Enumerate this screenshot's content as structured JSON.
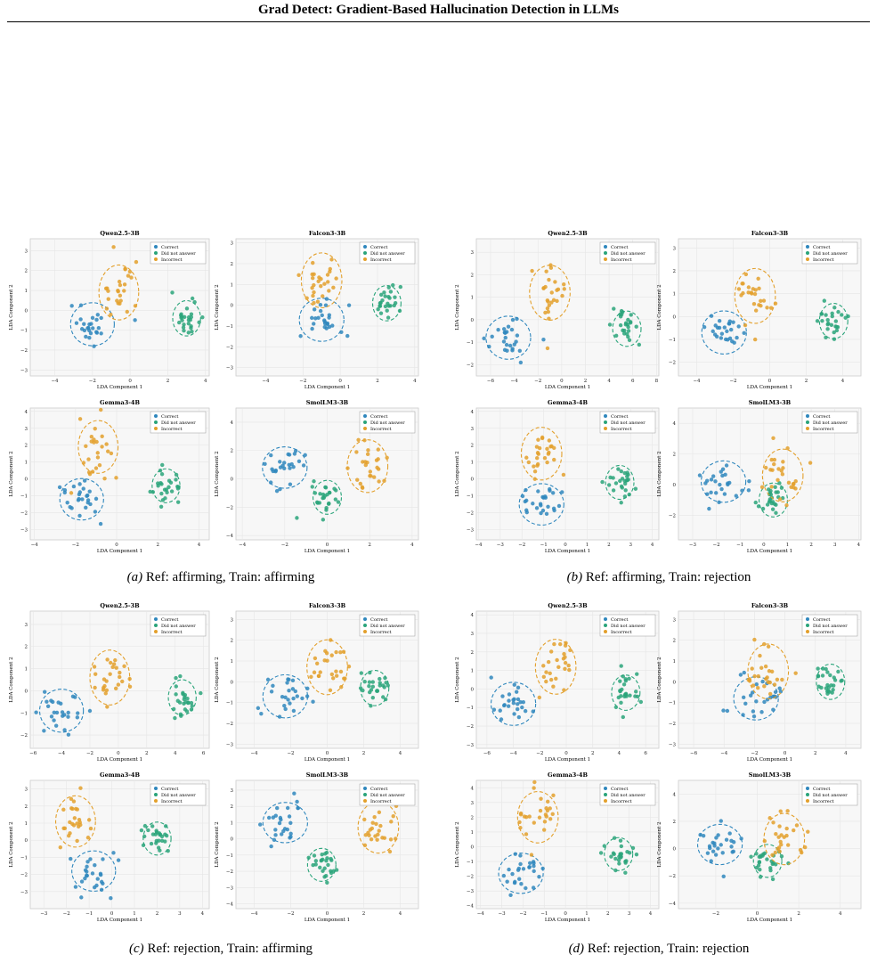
{
  "header": {
    "title": "Grad Detect: Gradient-Based Hallucination Detection in LLMs"
  },
  "legend": [
    "Correct",
    "Did not answer",
    "Incorrect"
  ],
  "colors": {
    "Correct": "#2f87bd",
    "Did not answer": "#2aa47a",
    "Incorrect": "#e3a02c"
  },
  "axis_labels": {
    "x": "LDA Component 1",
    "y": "LDA Component 2"
  },
  "subfigures": [
    {
      "label": "(a)",
      "caption": "Ref: affirming, Train: affirming"
    },
    {
      "label": "(b)",
      "caption": "Ref: affirming, Train: rejection"
    },
    {
      "label": "(c)",
      "caption": "Ref: rejection, Train: affirming"
    },
    {
      "label": "(d)",
      "caption": "Ref: rejection, Train: rejection"
    }
  ],
  "chart_data": [
    {
      "type": "scatter",
      "title": "Qwen2.5-3B",
      "subfigure": "(a)",
      "xticks": [
        -4,
        -2,
        0,
        2,
        4
      ],
      "yticks": [
        -3,
        -2,
        -1,
        0,
        1,
        2,
        3
      ],
      "xlim": [
        -5.3,
        4.2
      ],
      "ylim": [
        -3.3,
        3.6
      ],
      "clusters": {
        "Correct": [
          -2.0,
          -0.7
        ],
        "Did not answer": [
          3.0,
          -0.4
        ],
        "Incorrect": [
          -0.6,
          0.9
        ]
      }
    },
    {
      "type": "scatter",
      "title": "Falcon3-3B",
      "subfigure": "(a)",
      "xticks": [
        -4,
        -2,
        0,
        2,
        4
      ],
      "yticks": [
        -3,
        -2,
        -1,
        0,
        1,
        2,
        3
      ],
      "xlim": [
        -5.6,
        4.2
      ],
      "ylim": [
        -3.4,
        3.2
      ],
      "clusters": {
        "Correct": [
          -1.0,
          -0.7
        ],
        "Did not answer": [
          2.5,
          0.1
        ],
        "Incorrect": [
          -1.0,
          1.2
        ]
      }
    },
    {
      "type": "scatter",
      "title": "Gemma3-4B",
      "subfigure": "(a)",
      "xticks": [
        -4,
        -2,
        0,
        2,
        4
      ],
      "yticks": [
        -3,
        -2,
        -1,
        0,
        1,
        2,
        3,
        4
      ],
      "xlim": [
        -4.2,
        4.5
      ],
      "ylim": [
        -3.6,
        4.2
      ],
      "clusters": {
        "Correct": [
          -1.7,
          -1.2
        ],
        "Did not answer": [
          2.4,
          -0.4
        ],
        "Incorrect": [
          -0.9,
          1.9
        ]
      }
    },
    {
      "type": "scatter",
      "title": "SmolLM3-3B",
      "subfigure": "(a)",
      "xticks": [
        -4,
        -2,
        0,
        2,
        4
      ],
      "yticks": [
        -4,
        -2,
        0,
        2,
        4
      ],
      "xlim": [
        -4.3,
        4.3
      ],
      "ylim": [
        -4.3,
        5.0
      ],
      "clusters": {
        "Correct": [
          -2.0,
          0.8
        ],
        "Did not answer": [
          0.0,
          -1.3
        ],
        "Incorrect": [
          1.9,
          0.9
        ]
      }
    },
    {
      "type": "scatter",
      "title": "Qwen2.5-3B",
      "subfigure": "(b)",
      "xticks": [
        -6,
        -4,
        -2,
        0,
        2,
        4,
        6,
        8
      ],
      "yticks": [
        -2,
        -1,
        0,
        1,
        2,
        3
      ],
      "xlim": [
        -7.2,
        8.2
      ],
      "ylim": [
        -2.5,
        3.6
      ],
      "clusters": {
        "Correct": [
          -4.5,
          -0.8
        ],
        "Did not answer": [
          5.5,
          -0.4
        ],
        "Incorrect": [
          -1.0,
          1.2
        ]
      }
    },
    {
      "type": "scatter",
      "title": "Falcon3-3B",
      "subfigure": "(b)",
      "xticks": [
        -4,
        -2,
        0,
        2,
        4
      ],
      "yticks": [
        -2,
        -1,
        0,
        1,
        2,
        3
      ],
      "xlim": [
        -5.0,
        5.0
      ],
      "ylim": [
        -2.6,
        3.4
      ],
      "clusters": {
        "Correct": [
          -2.5,
          -0.7
        ],
        "Did not answer": [
          3.5,
          -0.2
        ],
        "Incorrect": [
          -0.8,
          0.9
        ]
      }
    },
    {
      "type": "scatter",
      "title": "Gemma3-4B",
      "subfigure": "(b)",
      "xticks": [
        -4,
        -3,
        -2,
        -1,
        0,
        1,
        2,
        3,
        4
      ],
      "yticks": [
        -3,
        -2,
        -1,
        0,
        1,
        2,
        3,
        4
      ],
      "xlim": [
        -4.1,
        4.3
      ],
      "ylim": [
        -3.6,
        4.2
      ],
      "clusters": {
        "Correct": [
          -1.1,
          -1.5
        ],
        "Did not answer": [
          2.5,
          -0.2
        ],
        "Incorrect": [
          -1.1,
          1.5
        ]
      }
    },
    {
      "type": "scatter",
      "title": "SmolLM3-3B",
      "subfigure": "(b)",
      "xticks": [
        -3,
        -2,
        -1,
        0,
        1,
        2,
        3,
        4
      ],
      "yticks": [
        -2,
        0,
        2,
        4
      ],
      "xlim": [
        -3.6,
        4.1
      ],
      "ylim": [
        -3.6,
        5.0
      ],
      "clusters": {
        "Correct": [
          -1.7,
          0.2
        ],
        "Did not answer": [
          0.4,
          -1.0
        ],
        "Incorrect": [
          0.8,
          0.6
        ]
      }
    },
    {
      "type": "scatter",
      "title": "Qwen2.5-3B",
      "subfigure": "(c)",
      "xticks": [
        -6,
        -4,
        -2,
        0,
        2,
        4,
        6
      ],
      "yticks": [
        -2,
        -1,
        0,
        1,
        2,
        3
      ],
      "xlim": [
        -6.2,
        6.4
      ],
      "ylim": [
        -2.6,
        3.6
      ],
      "clusters": {
        "Correct": [
          -4.0,
          -0.9
        ],
        "Did not answer": [
          4.5,
          -0.3
        ],
        "Incorrect": [
          -0.6,
          0.6
        ]
      }
    },
    {
      "type": "scatter",
      "title": "Falcon3-3B",
      "subfigure": "(c)",
      "xticks": [
        -4,
        -2,
        0,
        2,
        4
      ],
      "yticks": [
        -3,
        -2,
        -1,
        0,
        1,
        2,
        3
      ],
      "xlim": [
        -5.0,
        5.0
      ],
      "ylim": [
        -3.2,
        3.4
      ],
      "clusters": {
        "Correct": [
          -2.3,
          -0.7
        ],
        "Did not answer": [
          2.6,
          -0.3
        ],
        "Incorrect": [
          0.0,
          0.7
        ]
      }
    },
    {
      "type": "scatter",
      "title": "Gemma3-4B",
      "subfigure": "(c)",
      "xticks": [
        -3,
        -2,
        -1,
        0,
        1,
        2,
        3,
        4
      ],
      "yticks": [
        -3,
        -2,
        -1,
        0,
        1,
        2,
        3
      ],
      "xlim": [
        -3.6,
        4.3
      ],
      "ylim": [
        -4.0,
        3.5
      ],
      "clusters": {
        "Correct": [
          -0.8,
          -1.8
        ],
        "Did not answer": [
          2.0,
          0.1
        ],
        "Incorrect": [
          -1.6,
          1.1
        ]
      }
    },
    {
      "type": "scatter",
      "title": "SmolLM3-3B",
      "subfigure": "(c)",
      "xticks": [
        -4,
        -2,
        0,
        2,
        4
      ],
      "yticks": [
        -4,
        -3,
        -2,
        -1,
        0,
        1,
        2,
        3
      ],
      "xlim": [
        -5.0,
        5.0
      ],
      "ylim": [
        -4.3,
        3.6
      ],
      "clusters": {
        "Correct": [
          -2.3,
          1.0
        ],
        "Did not answer": [
          -0.3,
          -1.6
        ],
        "Incorrect": [
          2.8,
          0.7
        ]
      }
    },
    {
      "type": "scatter",
      "title": "Qwen2.5-3B",
      "subfigure": "(d)",
      "xticks": [
        -6,
        -4,
        -2,
        0,
        2,
        4,
        6
      ],
      "yticks": [
        -3,
        -2,
        -1,
        0,
        1,
        2,
        3,
        4
      ],
      "xlim": [
        -6.8,
        7.0
      ],
      "ylim": [
        -3.2,
        4.2
      ],
      "clusters": {
        "Correct": [
          -4.0,
          -0.8
        ],
        "Did not answer": [
          4.5,
          -0.2
        ],
        "Incorrect": [
          -0.8,
          1.2
        ]
      }
    },
    {
      "type": "scatter",
      "title": "Falcon3-3B",
      "subfigure": "(d)",
      "xticks": [
        -6,
        -4,
        -2,
        0,
        2,
        4
      ],
      "yticks": [
        -3,
        -2,
        -1,
        0,
        1,
        2,
        3
      ],
      "xlim": [
        -7.0,
        5.0
      ],
      "ylim": [
        -3.2,
        3.4
      ],
      "clusters": {
        "Correct": [
          -1.9,
          -0.8
        ],
        "Did not answer": [
          3.0,
          0.0
        ],
        "Incorrect": [
          -1.1,
          0.5
        ]
      }
    },
    {
      "type": "scatter",
      "title": "Gemma3-4B",
      "subfigure": "(d)",
      "xticks": [
        -4,
        -3,
        -2,
        -1,
        0,
        1,
        2,
        3,
        4
      ],
      "yticks": [
        -4,
        -3,
        -2,
        -1,
        0,
        1,
        2,
        3,
        4
      ],
      "xlim": [
        -4.2,
        4.4
      ],
      "ylim": [
        -4.2,
        4.5
      ],
      "clusters": {
        "Correct": [
          -2.1,
          -1.8
        ],
        "Did not answer": [
          2.5,
          -0.5
        ],
        "Incorrect": [
          -1.3,
          2.0
        ]
      }
    },
    {
      "type": "scatter",
      "title": "SmolLM3-3B",
      "subfigure": "(d)",
      "xticks": [
        -2,
        0,
        2,
        4
      ],
      "yticks": [
        -4,
        -2,
        0,
        2,
        4
      ],
      "xlim": [
        -3.8,
        5.0
      ],
      "ylim": [
        -4.4,
        5.0
      ],
      "clusters": {
        "Correct": [
          -1.8,
          0.3
        ],
        "Did not answer": [
          0.5,
          -0.9
        ],
        "Incorrect": [
          1.3,
          0.7
        ]
      }
    }
  ]
}
